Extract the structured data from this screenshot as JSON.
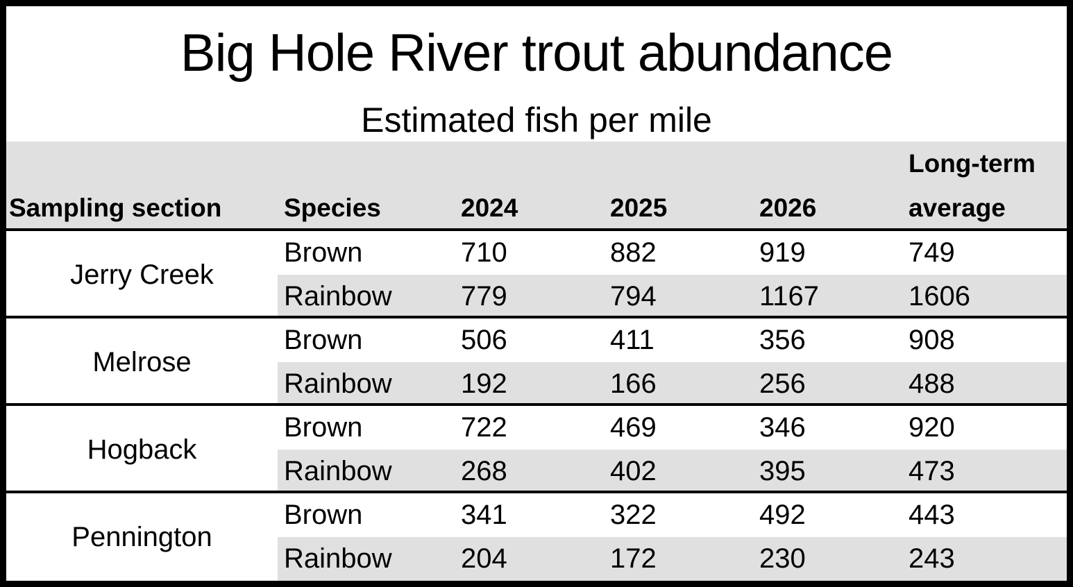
{
  "chart_data": {
    "type": "table",
    "title": "Big Hole River trout abundance",
    "subtitle": "Estimated fish per mile",
    "columns": [
      "Sampling section",
      "Species",
      "2024",
      "2025",
      "2026",
      "Long-term average"
    ],
    "header_long_term_line1": "Long-term",
    "header_long_term_line2": "average",
    "sections": [
      {
        "name": "Jerry Creek",
        "rows": [
          {
            "species": "Brown",
            "values": [
              "710",
              "882",
              "919",
              "749"
            ]
          },
          {
            "species": "Rainbow",
            "values": [
              "779",
              "794",
              "1167",
              "1606"
            ]
          }
        ]
      },
      {
        "name": "Melrose",
        "rows": [
          {
            "species": "Brown",
            "values": [
              "506",
              "411",
              "356",
              "908"
            ]
          },
          {
            "species": "Rainbow",
            "values": [
              "192",
              "166",
              "256",
              "488"
            ]
          }
        ]
      },
      {
        "name": "Hogback",
        "rows": [
          {
            "species": "Brown",
            "values": [
              "722",
              "469",
              "346",
              "920"
            ]
          },
          {
            "species": "Rainbow",
            "values": [
              "268",
              "402",
              "395",
              "473"
            ]
          }
        ]
      },
      {
        "name": "Pennington",
        "rows": [
          {
            "species": "Brown",
            "values": [
              "341",
              "322",
              "492",
              "443"
            ]
          },
          {
            "species": "Rainbow",
            "values": [
              "204",
              "172",
              "230",
              "243"
            ]
          }
        ]
      }
    ]
  },
  "colors": {
    "header_background": "#e0e0e0",
    "alternate_row_background": "#e0e0e0",
    "rule": "#000000"
  }
}
